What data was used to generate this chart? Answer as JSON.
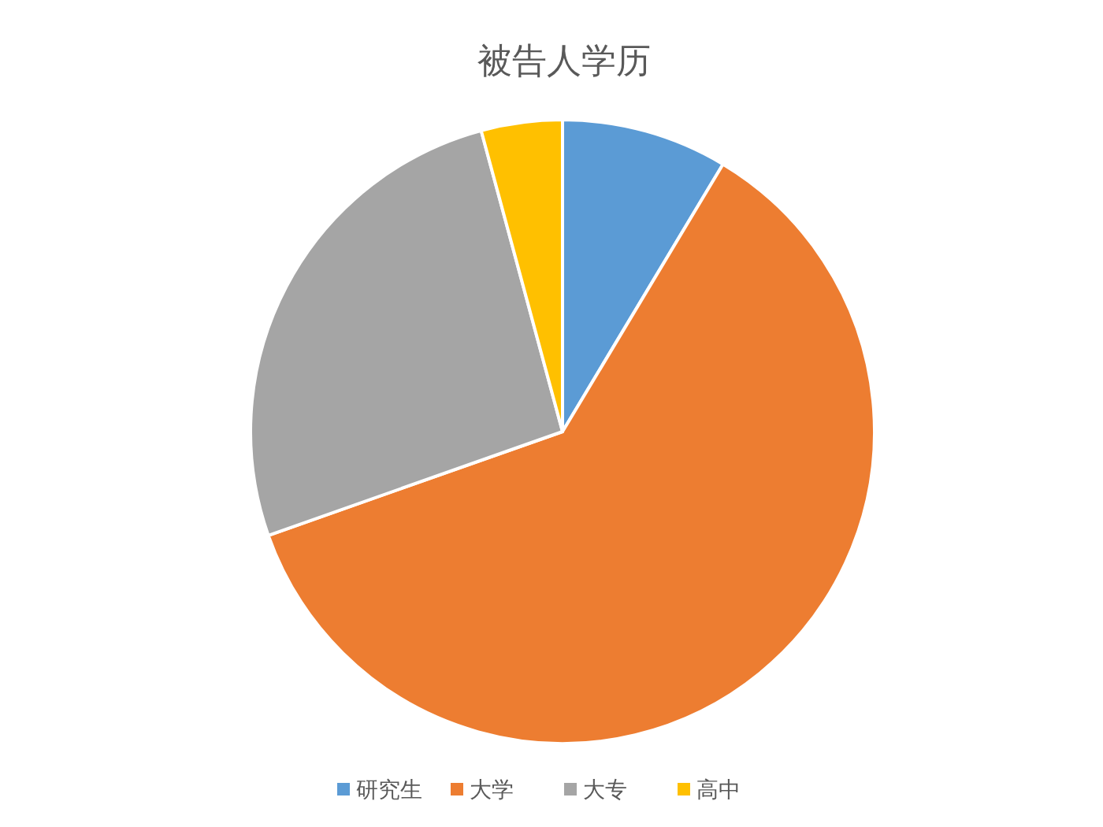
{
  "chart_data": {
    "type": "pie",
    "title": "被告人学历",
    "categories": [
      "研究生",
      "大学",
      "大专",
      "高中"
    ],
    "values": [
      8.6,
      61.0,
      26.2,
      4.2
    ],
    "colors": [
      "#5b9bd5",
      "#ed7d31",
      "#a5a5a5",
      "#ffc000"
    ],
    "legend": "bottom"
  }
}
